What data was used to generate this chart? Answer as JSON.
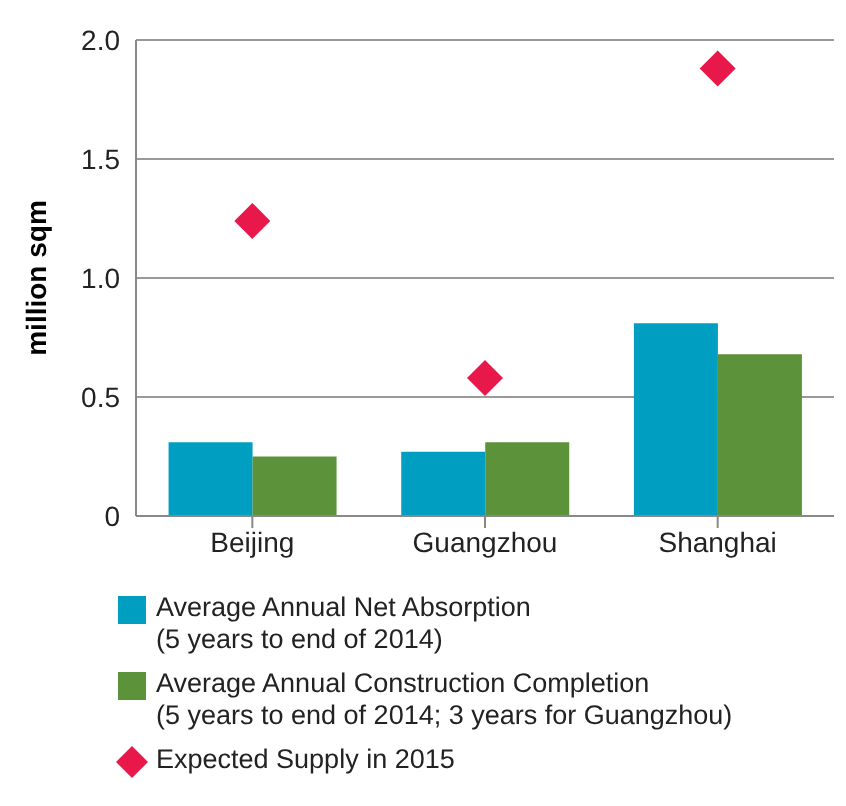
{
  "chart_data": {
    "type": "bar",
    "ylabel": "million sqm",
    "categories": [
      "Beijing",
      "Guangzhou",
      "Shanghai"
    ],
    "series": [
      {
        "name": "Average Annual Net Absorption\n(5 years to end of 2014)",
        "color": "#009fc2",
        "values": [
          0.31,
          0.27,
          0.81
        ]
      },
      {
        "name": "Average Annual Construction Completion\n(5 years to end of 2014; 3 years for Guangzhou)",
        "color": "#5b923a",
        "values": [
          0.25,
          0.31,
          0.68
        ]
      },
      {
        "name": "Expected Supply in 2015",
        "type": "scatter",
        "marker": "diamond",
        "color": "#e8194a",
        "x": [
          "Beijing",
          "Guangzhou",
          "Shanghai"
        ],
        "values": [
          1.24,
          0.58,
          1.88
        ]
      }
    ],
    "ylim": [
      0,
      2
    ],
    "yticks": [
      0,
      0.5,
      {
        "value": 1,
        "label": "1.0"
      },
      1.5,
      {
        "value": 2,
        "label": "2.0"
      }
    ],
    "grid": "y",
    "legend": "bottom"
  }
}
